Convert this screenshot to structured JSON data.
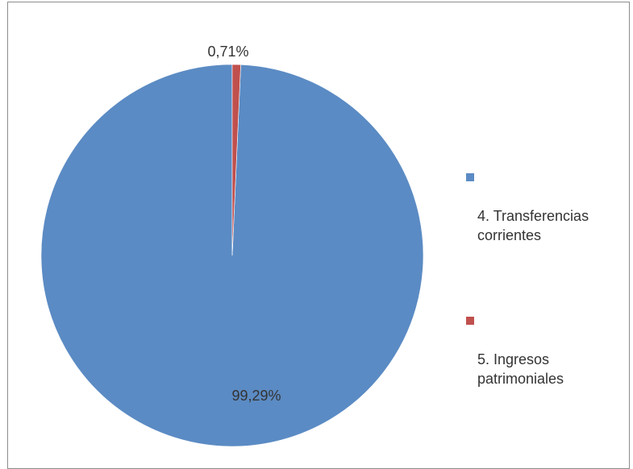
{
  "chart_data": {
    "type": "pie",
    "categories": [
      "4. Transferencias corrientes",
      "5. Ingresos patrimoniales"
    ],
    "values": [
      99.29,
      0.71
    ],
    "data_labels": [
      "99,29%",
      "0,71%"
    ],
    "colors": [
      "#5b8bc4",
      "#c0504d"
    ],
    "legend_position": "right",
    "title": ""
  },
  "legend": {
    "items": [
      {
        "label": "4. Transferencias\ncorrientes",
        "color": "#5b8bc4"
      },
      {
        "label": "5. Ingresos\npatrimoniales",
        "color": "#c0504d"
      }
    ]
  }
}
